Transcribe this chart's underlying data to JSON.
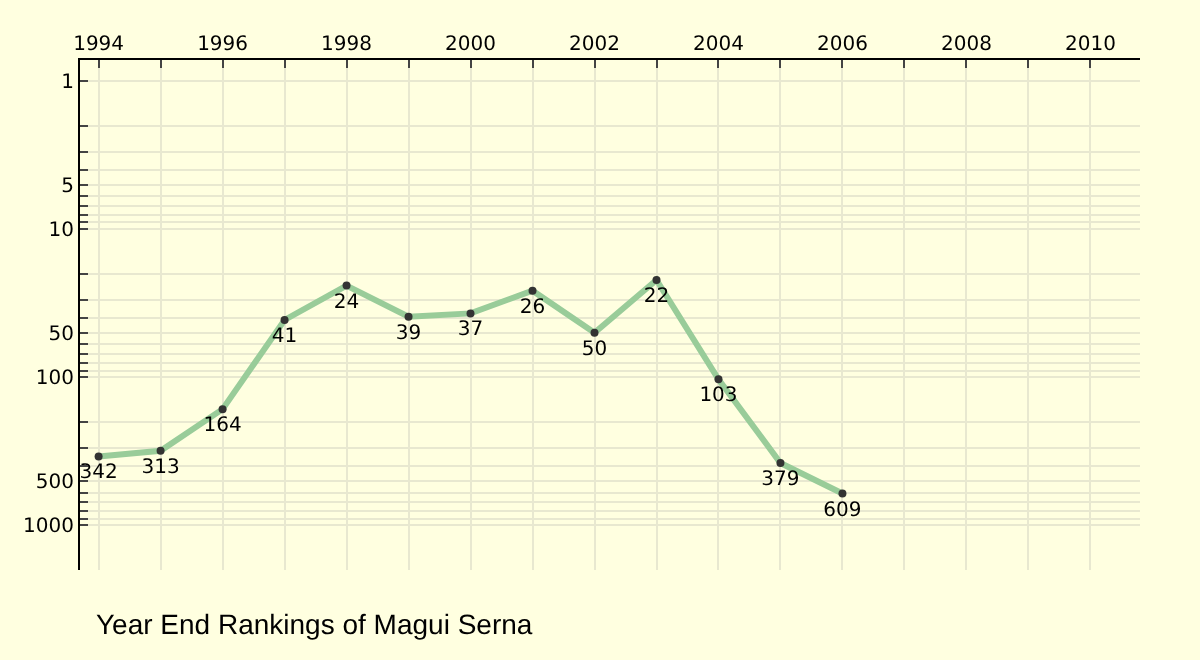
{
  "chart_data": {
    "type": "line",
    "title": "Year End Rankings of Magui Serna",
    "log": "y",
    "grid": true,
    "marker": "circle",
    "line_style": "solid",
    "data_labels": true,
    "x": [
      1994,
      1995,
      1996,
      1997,
      1998,
      1999,
      2000,
      2001,
      2002,
      2003,
      2004,
      2005,
      2006
    ],
    "series": [
      {
        "color": "#99cc99",
        "values": [
          342,
          313,
          164,
          41,
          24,
          39,
          37,
          26,
          50,
          22,
          103,
          379,
          609
        ]
      }
    ],
    "xlim": [
      1993.7,
      2010.8
    ],
    "xticks": [
      1994,
      {
        "value": 1995,
        "label": null
      },
      1996,
      {
        "value": 1997,
        "label": null
      },
      1998,
      {
        "value": 1999,
        "label": null
      },
      2000,
      {
        "value": 2001,
        "label": null
      },
      2002,
      {
        "value": 2003,
        "label": null
      },
      2004,
      {
        "value": 2005,
        "label": null
      },
      2006,
      {
        "value": 2007,
        "label": null
      },
      2008,
      {
        "value": 2009,
        "label": null
      },
      2010
    ],
    "ylim": [
      2000,
      0.72
    ],
    "yticks": [
      1,
      {
        "value": 2,
        "label": null
      },
      {
        "value": 3,
        "label": null
      },
      {
        "value": 4,
        "label": null
      },
      5,
      {
        "value": 6,
        "label": null
      },
      {
        "value": 7,
        "label": null
      },
      {
        "value": 8,
        "label": null
      },
      {
        "value": 9,
        "label": null
      },
      10,
      {
        "value": 20,
        "label": null
      },
      {
        "value": 30,
        "label": null
      },
      {
        "value": 40,
        "label": null
      },
      50,
      {
        "value": 60,
        "label": null
      },
      {
        "value": 70,
        "label": null
      },
      {
        "value": 80,
        "label": null
      },
      {
        "value": 90,
        "label": null
      },
      100,
      {
        "value": 200,
        "label": null
      },
      {
        "value": 300,
        "label": null
      },
      {
        "value": 400,
        "label": null
      },
      500,
      {
        "value": 600,
        "label": null
      },
      {
        "value": 700,
        "label": null
      },
      {
        "value": 800,
        "label": null
      },
      {
        "value": 900,
        "label": null
      },
      1000
    ]
  }
}
